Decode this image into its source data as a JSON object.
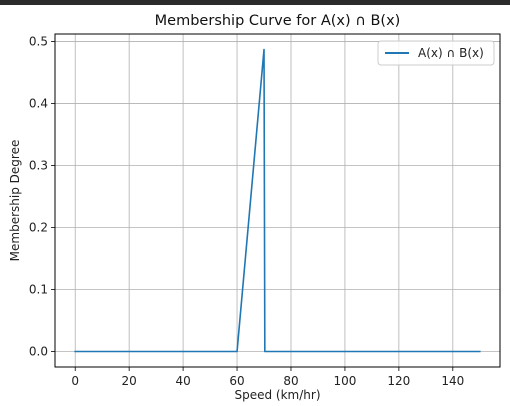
{
  "chart_data": {
    "type": "line",
    "title": "Membership Curve for A(x) ∩ B(x)",
    "xlabel": "Speed (km/hr)",
    "ylabel": "Membership Degree",
    "xlim": [
      -7.5,
      157.5
    ],
    "ylim": [
      -0.025,
      0.512
    ],
    "x_ticks": [
      0,
      20,
      40,
      60,
      80,
      100,
      120,
      140
    ],
    "y_ticks": [
      0.0,
      0.1,
      0.2,
      0.3,
      0.4,
      0.5
    ],
    "y_tick_labels": [
      "0.0",
      "0.1",
      "0.2",
      "0.3",
      "0.4",
      "0.5"
    ],
    "grid": true,
    "legend_position": "top-right",
    "series": [
      {
        "name": "A(x) ∩ B(x)",
        "color": "#1f77b4",
        "x": [
          0,
          60,
          70,
          70.3,
          150
        ],
        "y": [
          0,
          0,
          0.487,
          0,
          0
        ]
      }
    ]
  }
}
